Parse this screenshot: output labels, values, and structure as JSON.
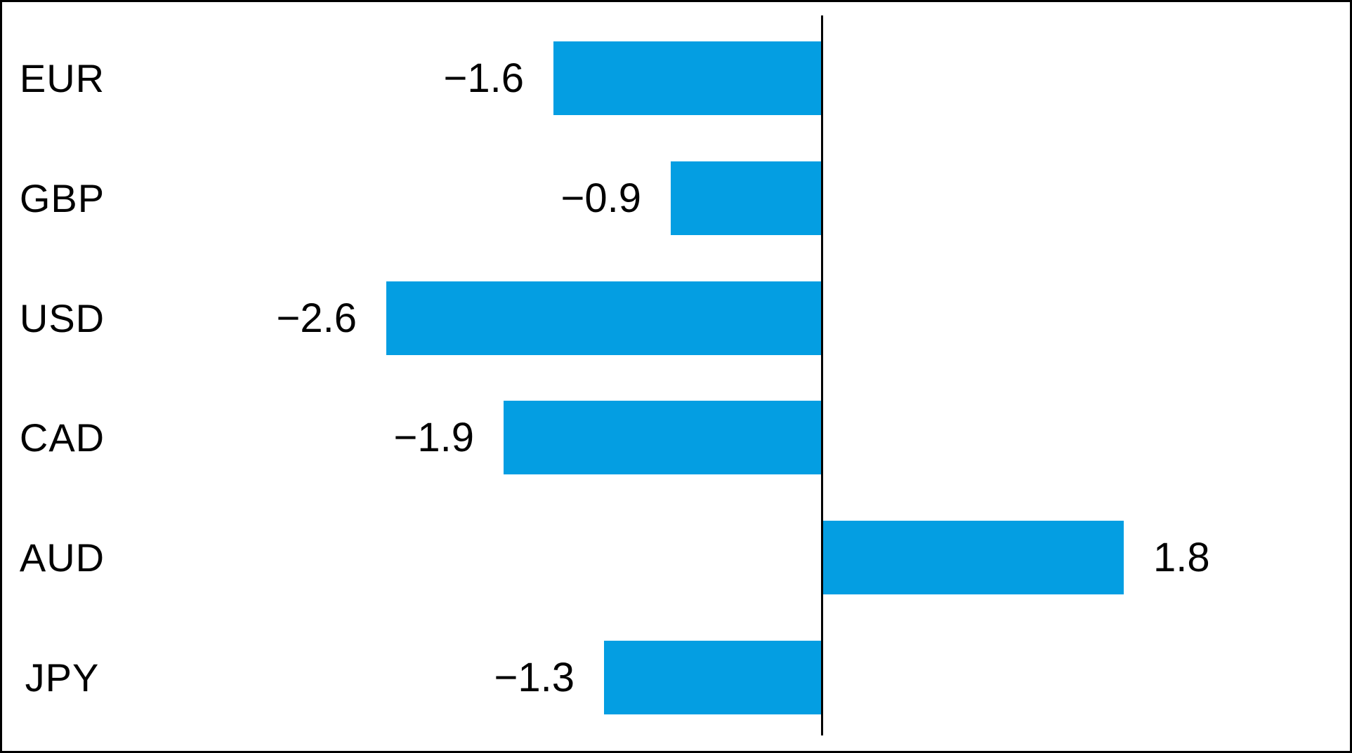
{
  "colors": {
    "bar": "#049ee2",
    "axis": "#000000",
    "text": "#000000",
    "background": "#ffffff",
    "border": "#000000"
  },
  "chart_data": {
    "type": "bar",
    "orientation": "horizontal",
    "title": "",
    "xlabel": "",
    "ylabel": "",
    "categories": [
      "EUR",
      "GBP",
      "USD",
      "CAD",
      "AUD",
      "JPY"
    ],
    "values": [
      -1.6,
      -0.9,
      -2.6,
      -1.9,
      1.8,
      -1.3
    ],
    "value_labels": [
      "−1.6",
      "−0.9",
      "−2.6",
      "−1.9",
      "1.8",
      "−1.3"
    ],
    "bar_color": "#049ee2",
    "xlim": [
      -4.9,
      3.2
    ],
    "grid": false,
    "legend": false,
    "zero_line": true,
    "value_label_position": "outside-end",
    "category_label_position": "left"
  }
}
